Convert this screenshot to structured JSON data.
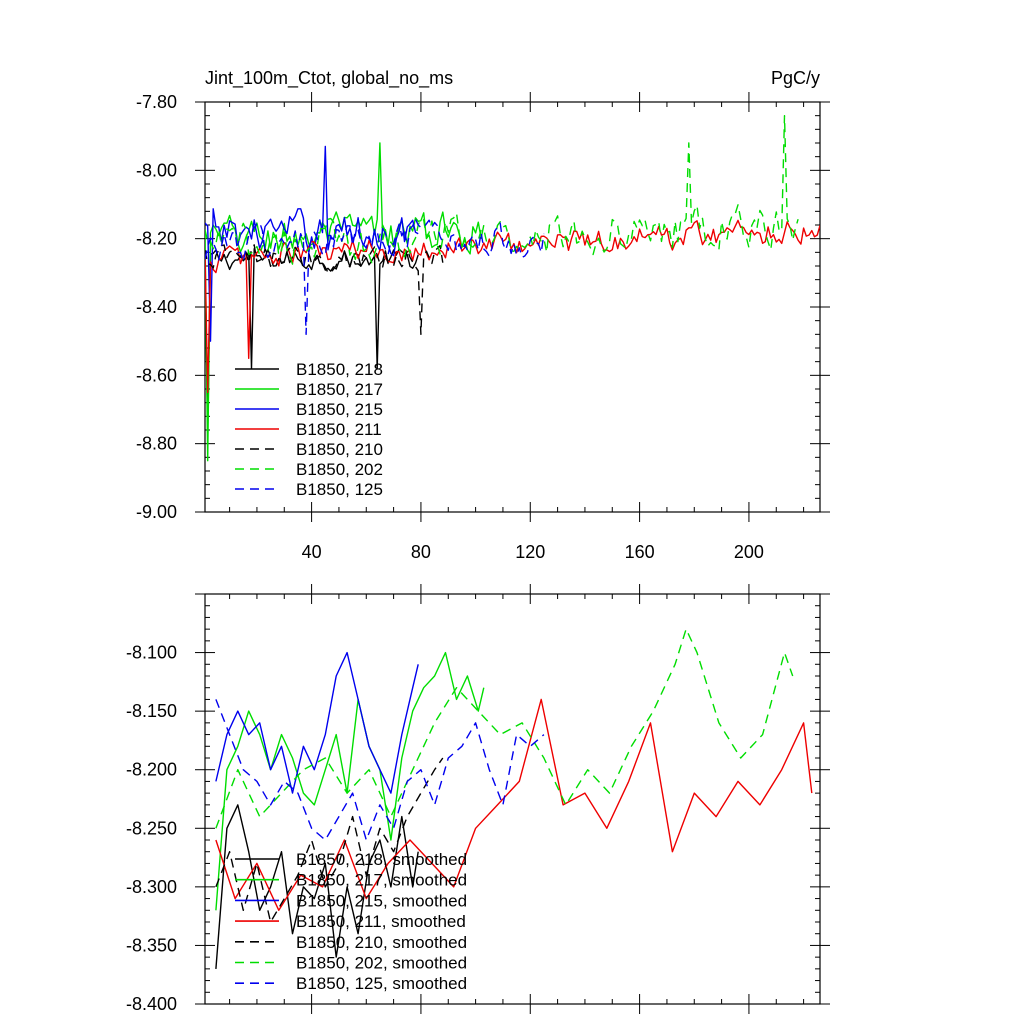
{
  "chart_data": [
    {
      "type": "line",
      "title_left": "Jint_100m_Ctot, global_no_ms",
      "title_right": "PgC/y",
      "xlim": [
        1,
        226
      ],
      "ylim": [
        -9.0,
        -7.8
      ],
      "x_ticks": [
        40,
        80,
        120,
        160,
        200
      ],
      "x_tick_labels": [
        "40",
        "80",
        "120",
        "160",
        "200"
      ],
      "y_ticks": [
        -9.0,
        -8.8,
        -8.6,
        -8.4,
        -8.2,
        -8.0,
        -7.8
      ],
      "y_tick_labels": [
        "-9.00",
        "-8.80",
        "-8.60",
        "-8.40",
        "-8.20",
        "-8.00",
        "-7.80"
      ],
      "legend": "lower-left",
      "series": [
        {
          "name": "B1850, 218",
          "label": "B1850, 218",
          "color": "#000000",
          "dash": "solid",
          "n": 79,
          "base": -8.26,
          "amp": 0.05,
          "trend": 0.0,
          "spike": [
            [
              2,
              -8.76
            ],
            [
              18,
              -8.58
            ],
            [
              64,
              -8.58
            ]
          ]
        },
        {
          "name": "B1850, 217",
          "label": "B1850, 217",
          "color": "#00dd00",
          "dash": "solid",
          "n": 103,
          "base": -8.2,
          "amp": 0.09,
          "trend": 0.05,
          "spike": [
            [
              2,
              -8.85
            ],
            [
              65,
              -7.92
            ]
          ]
        },
        {
          "name": "B1850, 215",
          "label": "B1850, 215",
          "color": "#0000ee",
          "dash": "solid",
          "n": 79,
          "base": -8.18,
          "amp": 0.09,
          "trend": 0.0,
          "spike": [
            [
              3,
              -8.5
            ],
            [
              45,
              -7.93
            ]
          ]
        },
        {
          "name": "B1850, 211",
          "label": "B1850, 211",
          "color": "#ee0000",
          "dash": "solid",
          "n": 226,
          "base": -8.26,
          "amp": 0.06,
          "trend": 0.09,
          "spike": [
            [
              2,
              -8.65
            ],
            [
              17,
              -8.55
            ]
          ]
        },
        {
          "name": "B1850, 210",
          "label": "B1850, 210",
          "color": "#000000",
          "dash": "dashed",
          "n": 88,
          "base": -8.26,
          "amp": 0.06,
          "trend": 0.02,
          "spike": [
            [
              80,
              -8.48
            ]
          ]
        },
        {
          "name": "B1850, 202",
          "label": "B1850, 202",
          "color": "#00dd00",
          "dash": "dashed",
          "n": 218,
          "base": -8.22,
          "amp": 0.09,
          "trend": 0.06,
          "spike": [
            [
              213,
              -7.84
            ],
            [
              178,
              -7.92
            ]
          ]
        },
        {
          "name": "B1850, 125",
          "label": "B1850, 125",
          "color": "#0000ee",
          "dash": "dashed",
          "n": 125,
          "base": -8.22,
          "amp": 0.08,
          "trend": 0.04,
          "spike": [
            [
              38,
              -8.48
            ]
          ]
        }
      ]
    },
    {
      "type": "line",
      "xlim": [
        1,
        226
      ],
      "ylim": [
        -8.4,
        -8.05
      ],
      "x_ticks": [
        40,
        80,
        120,
        160,
        200
      ],
      "y_ticks": [
        -8.4,
        -8.35,
        -8.3,
        -8.25,
        -8.2,
        -8.15,
        -8.1
      ],
      "y_tick_labels": [
        "-8.400",
        "-8.350",
        "-8.300",
        "-8.250",
        "-8.200",
        "-8.150",
        "-8.100"
      ],
      "legend": "lower-left",
      "series": [
        {
          "name": "B1850, 218, smoothed",
          "label": "B1850, 218, smoothed",
          "color": "#000000",
          "dash": "solid",
          "x": [
            5,
            9,
            13,
            17,
            21,
            25,
            29,
            33,
            37,
            41,
            45,
            49,
            53,
            57,
            61,
            65,
            69,
            73,
            77,
            79
          ],
          "y": [
            -8.37,
            -8.25,
            -8.23,
            -8.27,
            -8.32,
            -8.3,
            -8.27,
            -8.34,
            -8.3,
            -8.31,
            -8.28,
            -8.36,
            -8.3,
            -8.34,
            -8.28,
            -8.26,
            -8.3,
            -8.24,
            -8.3,
            -8.27
          ]
        },
        {
          "name": "B1850, 217, smoothed",
          "label": "B1850, 217, smoothed",
          "color": "#00dd00",
          "dash": "solid",
          "x": [
            5,
            9,
            13,
            17,
            21,
            25,
            29,
            33,
            37,
            41,
            45,
            49,
            53,
            57,
            61,
            65,
            69,
            73,
            77,
            81,
            85,
            89,
            93,
            97,
            101,
            103
          ],
          "y": [
            -8.32,
            -8.2,
            -8.18,
            -8.15,
            -8.17,
            -8.2,
            -8.17,
            -8.19,
            -8.22,
            -8.23,
            -8.2,
            -8.17,
            -8.22,
            -8.14,
            -8.18,
            -8.2,
            -8.26,
            -8.19,
            -8.15,
            -8.13,
            -8.12,
            -8.1,
            -8.14,
            -8.12,
            -8.15,
            -8.13
          ]
        },
        {
          "name": "B1850, 215, smoothed",
          "label": "B1850, 215, smoothed",
          "color": "#0000ee",
          "dash": "solid",
          "x": [
            5,
            9,
            13,
            17,
            21,
            25,
            29,
            33,
            37,
            41,
            45,
            49,
            53,
            57,
            61,
            65,
            69,
            73,
            77,
            79
          ],
          "y": [
            -8.21,
            -8.17,
            -8.15,
            -8.17,
            -8.16,
            -8.2,
            -8.18,
            -8.22,
            -8.18,
            -8.2,
            -8.17,
            -8.12,
            -8.1,
            -8.14,
            -8.18,
            -8.2,
            -8.22,
            -8.17,
            -8.13,
            -8.11
          ]
        },
        {
          "name": "B1850, 211, smoothed",
          "label": "B1850, 211, smoothed",
          "color": "#ee0000",
          "dash": "solid",
          "x": [
            5,
            12,
            20,
            28,
            36,
            44,
            52,
            60,
            68,
            76,
            84,
            92,
            100,
            108,
            116,
            124,
            132,
            140,
            148,
            156,
            164,
            172,
            180,
            188,
            196,
            204,
            212,
            220,
            223
          ],
          "y": [
            -8.26,
            -8.31,
            -8.28,
            -8.32,
            -8.29,
            -8.3,
            -8.26,
            -8.31,
            -8.28,
            -8.26,
            -8.28,
            -8.3,
            -8.25,
            -8.23,
            -8.21,
            -8.14,
            -8.23,
            -8.22,
            -8.25,
            -8.21,
            -8.16,
            -8.27,
            -8.22,
            -8.24,
            -8.21,
            -8.23,
            -8.2,
            -8.16,
            -8.22
          ]
        },
        {
          "name": "B1850, 210, smoothed",
          "label": "B1850, 210, smoothed",
          "color": "#000000",
          "dash": "dashed",
          "x": [
            5,
            10,
            15,
            20,
            25,
            30,
            35,
            40,
            45,
            50,
            55,
            60,
            65,
            70,
            75,
            80,
            85,
            88
          ],
          "y": [
            -8.3,
            -8.27,
            -8.32,
            -8.28,
            -8.33,
            -8.31,
            -8.29,
            -8.26,
            -8.3,
            -8.28,
            -8.24,
            -8.29,
            -8.25,
            -8.27,
            -8.24,
            -8.22,
            -8.2,
            -8.19
          ]
        },
        {
          "name": "B1850, 202, smoothed",
          "label": "B1850, 202, smoothed",
          "color": "#00dd00",
          "dash": "dashed",
          "x": [
            5,
            13,
            21,
            29,
            37,
            45,
            53,
            61,
            69,
            77,
            85,
            93,
            101,
            109,
            117,
            125,
            133,
            141,
            149,
            157,
            165,
            173,
            177,
            181,
            189,
            197,
            205,
            213,
            216
          ],
          "y": [
            -8.25,
            -8.2,
            -8.24,
            -8.22,
            -8.2,
            -8.19,
            -8.22,
            -8.2,
            -8.24,
            -8.2,
            -8.16,
            -8.13,
            -8.15,
            -8.17,
            -8.16,
            -8.19,
            -8.23,
            -8.2,
            -8.22,
            -8.18,
            -8.15,
            -8.11,
            -8.08,
            -8.1,
            -8.16,
            -8.19,
            -8.17,
            -8.1,
            -8.12
          ]
        },
        {
          "name": "B1850, 125, smoothed",
          "label": "B1850, 125, smoothed",
          "color": "#0000ee",
          "dash": "dashed",
          "x": [
            5,
            10,
            15,
            20,
            25,
            30,
            35,
            40,
            45,
            50,
            55,
            60,
            65,
            70,
            75,
            80,
            85,
            90,
            95,
            100,
            105,
            110,
            115,
            120,
            125
          ],
          "y": [
            -8.14,
            -8.17,
            -8.2,
            -8.21,
            -8.23,
            -8.21,
            -8.22,
            -8.25,
            -8.26,
            -8.24,
            -8.22,
            -8.26,
            -8.23,
            -8.25,
            -8.21,
            -8.2,
            -8.23,
            -8.19,
            -8.18,
            -8.16,
            -8.2,
            -8.23,
            -8.17,
            -8.18,
            -8.17
          ]
        }
      ]
    }
  ]
}
